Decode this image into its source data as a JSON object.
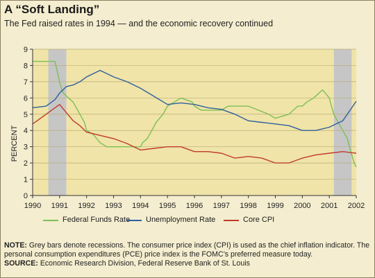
{
  "title": "A “Soft Landing”",
  "subtitle": "The Fed raised rates in 1994 — and the economic recovery continued",
  "colors": {
    "background": "#f4edcf",
    "plot_area": "#f0e4a8",
    "recession_bar": "#c6c6c6",
    "federal_funds": "#7cbf56",
    "unemployment": "#2e5f9e",
    "core_cpi": "#c0392b"
  },
  "notes": {
    "note_label": "NOTE:",
    "note_text": "Grey bars denote recessions. The consumer price index (CPI) is used as the chief inflation indicator. The personal consumption  expenditures (PCE) price index is the FOMC’s preferred measure today.",
    "source_label": "SOURCE:",
    "source_text": "Economic Research Division, Federal Reserve Bank of St. Louis"
  },
  "chart_data": {
    "type": "line",
    "ylabel": "PERCENT",
    "xlabel": "",
    "xlim": [
      1990,
      2002
    ],
    "ylim": [
      0,
      9
    ],
    "x_ticks": [
      "1990",
      "1991",
      "1992",
      "1993",
      "1994",
      "1995",
      "1996",
      "1997",
      "1998",
      "1999",
      "2000",
      "2001",
      "2002"
    ],
    "y_ticks": [
      "0",
      "1",
      "2",
      "3",
      "4",
      "5",
      "6",
      "7",
      "8",
      "9"
    ],
    "grid": true,
    "legend_position": "bottom",
    "recessions": [
      [
        1990.58,
        1991.25
      ],
      [
        2001.17,
        2001.83
      ]
    ],
    "series": [
      {
        "name": "Federal Funds Rate",
        "color": "#7cbf56",
        "x": [
          1990.0,
          1990.83,
          1991.0,
          1991.08,
          1991.17,
          1991.33,
          1991.5,
          1991.75,
          1991.92,
          1992.0,
          1992.25,
          1992.5,
          1992.75,
          1993.0,
          1994.0,
          1994.08,
          1994.25,
          1994.42,
          1994.58,
          1994.83,
          1995.0,
          1995.5,
          1995.92,
          1996.0,
          1996.25,
          1997.0,
          1997.25,
          1998.0,
          1998.75,
          1999.0,
          1999.5,
          1999.67,
          1999.83,
          2000.0,
          2000.17,
          2000.42,
          2000.75,
          2001.0,
          2001.08,
          2001.17,
          2001.33,
          2001.5,
          2001.67,
          2001.75,
          2001.92,
          2002.0
        ],
        "y": [
          8.25,
          8.25,
          7.0,
          6.5,
          6.25,
          6.0,
          5.75,
          5.0,
          4.5,
          4.0,
          3.75,
          3.25,
          3.0,
          3.0,
          3.0,
          3.25,
          3.5,
          4.0,
          4.5,
          5.0,
          5.5,
          6.0,
          5.75,
          5.5,
          5.25,
          5.25,
          5.5,
          5.5,
          5.0,
          4.75,
          5.0,
          5.25,
          5.5,
          5.5,
          5.75,
          6.0,
          6.5,
          6.0,
          5.5,
          5.0,
          4.5,
          4.0,
          3.5,
          3.0,
          2.0,
          1.75
        ]
      },
      {
        "name": "Unemployment Rate",
        "color": "#2e5f9e",
        "x": [
          1990.0,
          1990.5,
          1990.83,
          1991.0,
          1991.25,
          1991.5,
          1991.75,
          1992.0,
          1992.5,
          1993.0,
          1993.5,
          1994.0,
          1994.5,
          1995.0,
          1995.5,
          1996.0,
          1996.5,
          1997.0,
          1997.5,
          1998.0,
          1998.5,
          1999.0,
          1999.5,
          2000.0,
          2000.5,
          2001.0,
          2001.25,
          2001.5,
          2001.75,
          2002.0
        ],
        "y": [
          5.4,
          5.5,
          5.9,
          6.3,
          6.7,
          6.8,
          7.0,
          7.3,
          7.7,
          7.3,
          7.0,
          6.6,
          6.1,
          5.6,
          5.7,
          5.6,
          5.4,
          5.3,
          5.0,
          4.6,
          4.5,
          4.4,
          4.3,
          4.0,
          4.0,
          4.2,
          4.4,
          4.6,
          5.2,
          5.8
        ]
      },
      {
        "name": "Core CPI",
        "color": "#c0392b",
        "x": [
          1990.0,
          1990.25,
          1990.5,
          1990.75,
          1991.0,
          1991.25,
          1991.5,
          1991.75,
          1992.0,
          1992.5,
          1993.0,
          1993.5,
          1994.0,
          1994.5,
          1995.0,
          1995.5,
          1996.0,
          1996.5,
          1997.0,
          1997.5,
          1998.0,
          1998.5,
          1999.0,
          1999.5,
          2000.0,
          2000.5,
          2001.0,
          2001.5,
          2002.0
        ],
        "y": [
          4.4,
          4.7,
          5.0,
          5.3,
          5.6,
          5.1,
          4.6,
          4.3,
          3.9,
          3.7,
          3.5,
          3.2,
          2.8,
          2.9,
          3.0,
          3.0,
          2.7,
          2.7,
          2.6,
          2.3,
          2.4,
          2.3,
          2.0,
          2.0,
          2.3,
          2.5,
          2.6,
          2.7,
          2.6
        ]
      }
    ]
  }
}
